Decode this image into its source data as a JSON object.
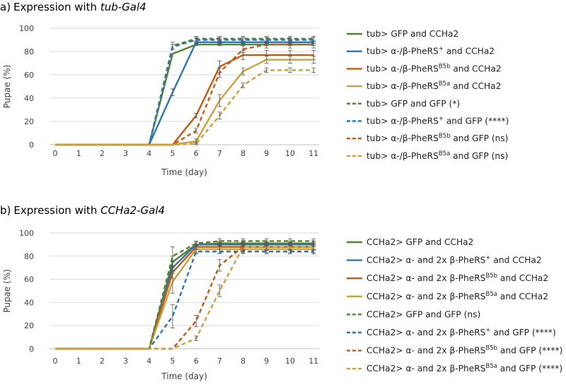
{
  "chart_data": [
    {
      "panel_label": "a)",
      "title_prefix": "Expression with ",
      "title_driver": "tub-Gal4",
      "type": "line",
      "xlabel": "Time (day)",
      "ylabel": "Pupae (%)",
      "x": [
        0,
        1,
        2,
        3,
        4,
        5,
        6,
        7,
        8,
        9,
        10,
        11
      ],
      "ylim": [
        0,
        100
      ],
      "yticks": [
        0,
        20,
        40,
        60,
        80,
        100
      ],
      "grid": true,
      "legend_position": "right",
      "series": [
        {
          "name": "tub> GFP and CCHa2",
          "label_parts": [
            {
              "t": "tub> GFP and CCHa2"
            }
          ],
          "color": "#548235",
          "dash": "solid",
          "values": [
            0,
            0,
            0,
            0,
            0,
            78,
            86,
            86,
            86,
            86,
            86,
            86
          ],
          "errors": [
            0,
            0,
            0,
            0,
            0,
            0,
            1,
            1,
            1,
            1,
            1,
            1
          ]
        },
        {
          "name": "tub> α-/β-PheRS+ and CCHa2",
          "label_parts": [
            {
              "t": "tub> α-/β-PheRS"
            },
            {
              "t": "+",
              "sup": true
            },
            {
              "t": " and CCHa2"
            }
          ],
          "color": "#2E75B6",
          "dash": "solid",
          "values": [
            0,
            0,
            0,
            0,
            0,
            45,
            88,
            88,
            88,
            88,
            88,
            88
          ],
          "errors": [
            0,
            0,
            0,
            0,
            0,
            3,
            1,
            1,
            1,
            1,
            1,
            1
          ]
        },
        {
          "name": "tub> α-/β-PheRSB5b and CCHa2",
          "label_parts": [
            {
              "t": "tub> α-/β-PheRS"
            },
            {
              "t": "B5b",
              "sup": true
            },
            {
              "t": " and CCHa2"
            }
          ],
          "color": "#C55A11",
          "dash": "solid",
          "values": [
            0,
            0,
            0,
            0,
            0,
            0,
            25,
            67,
            77,
            77,
            77,
            77
          ],
          "errors": [
            0,
            0,
            0,
            0,
            0,
            0,
            2,
            5,
            4,
            4,
            4,
            4
          ]
        },
        {
          "name": "tub> α-/β-PheRSB5a and CCHa2",
          "label_parts": [
            {
              "t": "tub> α-/β-PheRS"
            },
            {
              "t": "B5a",
              "sup": true
            },
            {
              "t": " and CCHa2"
            }
          ],
          "color": "#C9A13C",
          "dash": "solid",
          "values": [
            0,
            0,
            0,
            0,
            0,
            0,
            3,
            38,
            63,
            73,
            73,
            73
          ],
          "errors": [
            0,
            0,
            0,
            0,
            0,
            0,
            2,
            5,
            3,
            3,
            3,
            3
          ]
        },
        {
          "name": "tub> GFP and GFP (*)",
          "label_parts": [
            {
              "t": "tub> GFP and GFP (*)"
            }
          ],
          "color": "#548235",
          "dash": "dashed",
          "values": [
            0,
            0,
            0,
            0,
            0,
            85,
            91,
            91,
            91,
            91,
            91,
            91
          ],
          "errors": [
            0,
            0,
            0,
            0,
            0,
            3,
            2,
            2,
            2,
            2,
            2,
            2
          ]
        },
        {
          "name": "tub> α-/β-PheRS+ and GFP (****)",
          "label_parts": [
            {
              "t": "tub> α-/β-PheRS"
            },
            {
              "t": "+",
              "sup": true
            },
            {
              "t": " and GFP (****)"
            }
          ],
          "color": "#2E75B6",
          "dash": "dashed",
          "values": [
            0,
            0,
            0,
            0,
            0,
            84,
            90,
            90,
            90,
            90,
            90,
            90
          ],
          "errors": [
            0,
            0,
            0,
            0,
            0,
            2,
            2,
            2,
            2,
            2,
            2,
            2
          ]
        },
        {
          "name": "tub> α-/β-PheRSB5b and GFP (ns)",
          "label_parts": [
            {
              "t": "tub> α-/β-PheRS"
            },
            {
              "t": "B5b",
              "sup": true
            },
            {
              "t": " and GFP (ns)"
            }
          ],
          "color": "#C55A11",
          "dash": "dashed",
          "values": [
            0,
            0,
            0,
            0,
            0,
            0,
            12,
            62,
            82,
            86,
            86,
            86
          ],
          "errors": [
            0,
            0,
            0,
            0,
            0,
            0,
            2,
            4,
            3,
            3,
            3,
            3
          ]
        },
        {
          "name": "tub> α-/β-PheRSB5a and GFP (ns)",
          "label_parts": [
            {
              "t": "tub> α-/β-PheRS"
            },
            {
              "t": "B5a",
              "sup": true
            },
            {
              "t": " and GFP (ns)"
            }
          ],
          "color": "#C9A13C",
          "dash": "dashed",
          "values": [
            0,
            0,
            0,
            0,
            0,
            0,
            1,
            25,
            51,
            64,
            64,
            64
          ],
          "errors": [
            0,
            0,
            0,
            0,
            0,
            0,
            1,
            3,
            2,
            2,
            2,
            2
          ]
        }
      ]
    },
    {
      "panel_label": "b)",
      "title_prefix": "Expression with ",
      "title_driver": "CCHa2-Gal4",
      "type": "line",
      "xlabel": "Time (day)",
      "ylabel": "Pupae (%)",
      "x": [
        0,
        1,
        2,
        3,
        4,
        5,
        6,
        7,
        8,
        9,
        10,
        11
      ],
      "ylim": [
        0,
        100
      ],
      "yticks": [
        0,
        20,
        40,
        60,
        80,
        100
      ],
      "grid": true,
      "legend_position": "right",
      "series": [
        {
          "name": "CCHa2> GFP and CCHa2",
          "label_parts": [
            {
              "t": "CCHa2> GFP and CCHa2"
            }
          ],
          "color": "#548235",
          "dash": "solid",
          "values": [
            0,
            0,
            0,
            0,
            0,
            75,
            90,
            91,
            91,
            91,
            91,
            91
          ],
          "errors": [
            0,
            0,
            0,
            0,
            0,
            5,
            2,
            2,
            2,
            2,
            2,
            2
          ]
        },
        {
          "name": "CCHa2> α- and 2x β-PheRS+ and CCHa2",
          "label_parts": [
            {
              "t": "CCHa2> α- and 2x β-PheRS"
            },
            {
              "t": "+",
              "sup": true
            },
            {
              "t": " and CCHa2"
            }
          ],
          "color": "#2E75B6",
          "dash": "solid",
          "values": [
            0,
            0,
            0,
            0,
            0,
            70,
            90,
            90,
            90,
            90,
            90,
            90
          ],
          "errors": [
            0,
            0,
            0,
            0,
            0,
            5,
            2,
            2,
            2,
            2,
            2,
            2
          ]
        },
        {
          "name": "CCHa2> α- and 2x β-PheRSB5b and CCHa2",
          "label_parts": [
            {
              "t": "CCHa2> α- and 2x β-PheRS"
            },
            {
              "t": "B5b",
              "sup": true
            },
            {
              "t": " and CCHa2"
            }
          ],
          "color": "#C55A11",
          "dash": "solid",
          "values": [
            0,
            0,
            0,
            0,
            0,
            66,
            88,
            88,
            88,
            88,
            88,
            88
          ],
          "errors": [
            0,
            0,
            0,
            0,
            0,
            5,
            2,
            2,
            2,
            2,
            2,
            2
          ]
        },
        {
          "name": "CCHa2> α- and 2x β-PheRSB5a and CCHa2",
          "label_parts": [
            {
              "t": "CCHa2> α- and 2x β-PheRS"
            },
            {
              "t": "B5a",
              "sup": true
            },
            {
              "t": " and CCHa2"
            }
          ],
          "color": "#C9A13C",
          "dash": "solid",
          "values": [
            0,
            0,
            0,
            0,
            0,
            58,
            86,
            86,
            86,
            86,
            86,
            86
          ],
          "errors": [
            0,
            0,
            0,
            0,
            0,
            10,
            3,
            3,
            3,
            3,
            3,
            3
          ]
        },
        {
          "name": "CCHa2> GFP and GFP (ns)",
          "label_parts": [
            {
              "t": "CCHa2> GFP and GFP (ns)"
            }
          ],
          "color": "#548235",
          "dash": "dashed",
          "values": [
            0,
            0,
            0,
            0,
            0,
            80,
            91,
            93,
            93,
            93,
            93,
            93
          ],
          "errors": [
            0,
            0,
            0,
            0,
            0,
            8,
            2,
            2,
            2,
            2,
            2,
            2
          ]
        },
        {
          "name": "CCHa2> α- and 2x β-PheRS+ and GFP (****)",
          "label_parts": [
            {
              "t": "CCHa2> α- and 2x β-PheRS"
            },
            {
              "t": "+",
              "sup": true
            },
            {
              "t": " and GFP (****)"
            }
          ],
          "color": "#2E75B6",
          "dash": "dashed",
          "values": [
            0,
            0,
            0,
            0,
            0,
            28,
            84,
            84,
            84,
            84,
            84,
            84
          ],
          "errors": [
            0,
            0,
            0,
            0,
            0,
            10,
            2,
            2,
            2,
            2,
            2,
            2
          ]
        },
        {
          "name": "CCHa2> α- and 2x β-PheRSB5b and GFP (****)",
          "label_parts": [
            {
              "t": "CCHa2> α- and 2x β-PheRS"
            },
            {
              "t": "B5b",
              "sup": true
            },
            {
              "t": " and GFP (****)"
            }
          ],
          "color": "#C55A11",
          "dash": "dashed",
          "values": [
            0,
            0,
            0,
            0,
            0,
            0,
            24,
            72,
            88,
            88,
            88,
            88
          ],
          "errors": [
            0,
            0,
            0,
            0,
            0,
            0,
            5,
            5,
            3,
            3,
            3,
            3
          ]
        },
        {
          "name": "CCHa2> α- and 2x β-PheRSB5a and GFP (****)",
          "label_parts": [
            {
              "t": "CCHa2> α- and 2x β-PheRS"
            },
            {
              "t": "B5a",
              "sup": true
            },
            {
              "t": " and GFP (****)"
            }
          ],
          "color": "#C9A13C",
          "dash": "dashed",
          "values": [
            0,
            0,
            0,
            0,
            0,
            0,
            9,
            50,
            88,
            88,
            88,
            88
          ],
          "errors": [
            0,
            0,
            0,
            0,
            0,
            0,
            2,
            5,
            3,
            3,
            3,
            3
          ]
        }
      ]
    }
  ]
}
